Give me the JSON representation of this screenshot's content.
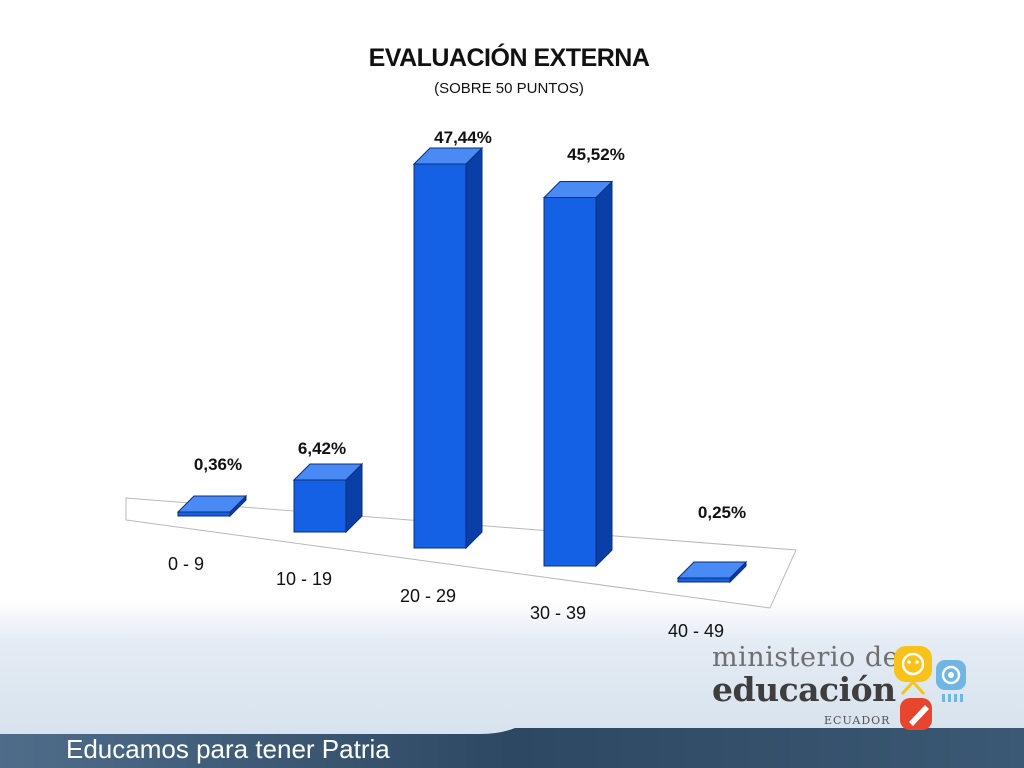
{
  "slide": {
    "title": "EVALUACIÓN EXTERNA",
    "subtitle": "(SOBRE 50 PUNTOS)",
    "footer_text": "Educamos para tener Patria",
    "logo": {
      "line1": "ministerio de",
      "line2": "educación",
      "line3": "ECUADOR",
      "icon_names": [
        "child-face-icon",
        "at-sign-icon",
        "pencil-icon"
      ]
    }
  },
  "colors": {
    "bar_front": "#1561e6",
    "bar_side": "#0a3fa8",
    "bar_top": "#4a8af4",
    "footer": "#2f4a64"
  },
  "chart_data": {
    "type": "bar",
    "title": "EVALUACIÓN EXTERNA",
    "subtitle": "(SOBRE 50 PUNTOS)",
    "categories": [
      "0 - 9",
      "10 - 19",
      "20 - 29",
      "30 - 39",
      "40 - 49"
    ],
    "values": [
      0.36,
      6.42,
      47.44,
      45.52,
      0.25
    ],
    "value_labels": [
      "0,36%",
      "6,42%",
      "47,44%",
      "45,52%",
      "0,25%"
    ],
    "unit": "%",
    "ylim": [
      0,
      50
    ],
    "grid": false,
    "legend": "none",
    "style": "3d-columns"
  }
}
